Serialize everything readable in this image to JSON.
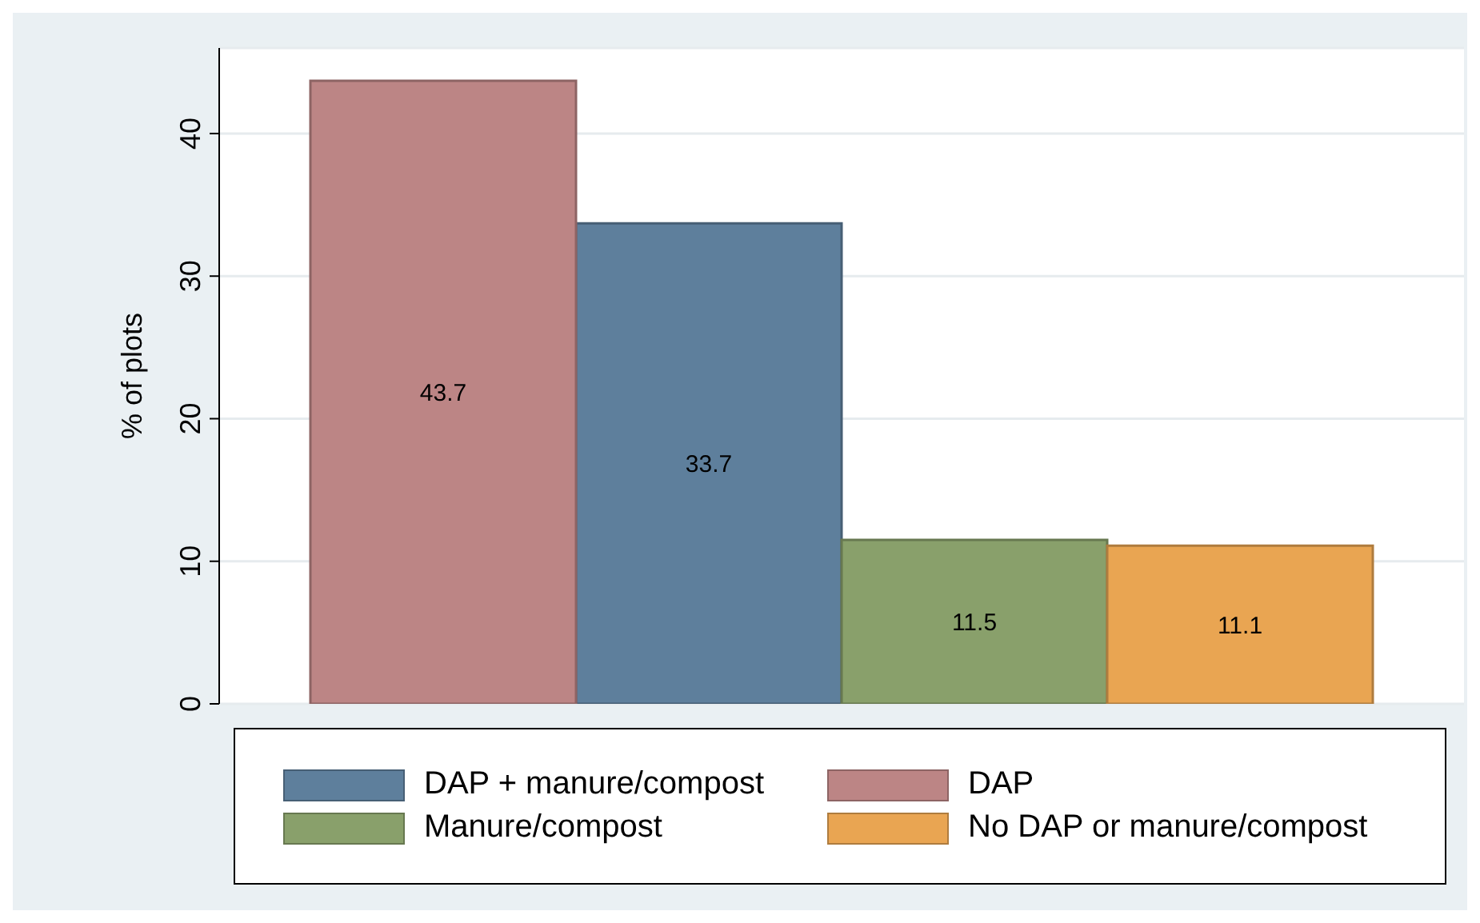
{
  "chart_data": {
    "type": "bar",
    "ylabel": "% of plots",
    "categories": [
      null,
      null,
      null,
      null
    ],
    "series": [
      {
        "name": "DAP + manure/compost",
        "color": "#5e7f9c",
        "values": [
          null,
          33.7,
          null,
          null
        ]
      },
      {
        "name": "DAP",
        "color": "#bc8585",
        "values": [
          43.7,
          null,
          null,
          null
        ]
      },
      {
        "name": "Manure/compost",
        "color": "#89a06b",
        "values": [
          null,
          null,
          11.5,
          null
        ]
      },
      {
        "name": "No DAP or manure/compost",
        "color": "#e9a552",
        "values": [
          null,
          null,
          null,
          11.1
        ]
      }
    ],
    "ylim": [
      0,
      46
    ],
    "yticks": [
      0,
      10,
      20,
      30,
      40
    ],
    "grid": "y",
    "legend": "bottom",
    "data_labels": true
  }
}
